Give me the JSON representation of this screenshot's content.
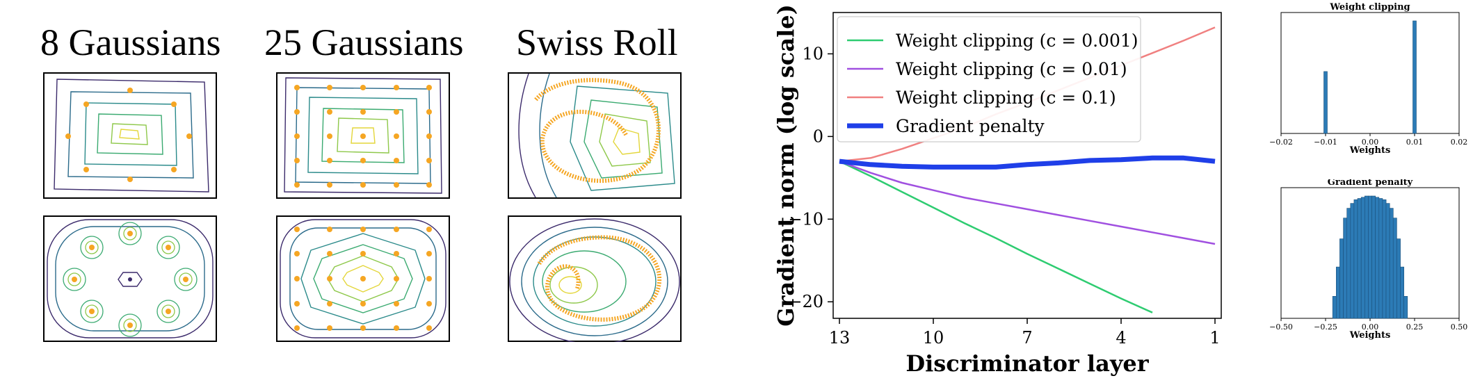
{
  "toy_titles": [
    "8 Gaussians",
    "25 Gaussians",
    "Swiss Roll"
  ],
  "chart_data": [
    {
      "type": "line",
      "xlabel": "Discriminator layer",
      "ylabel": "Gradient norm (log scale)",
      "x_ticks": [
        13,
        10,
        7,
        4,
        1
      ],
      "x_reversed": true,
      "xlim": [
        13.2,
        0.8
      ],
      "y_ticks": [
        10,
        0,
        -10,
        -20
      ],
      "ylim": [
        -22,
        15
      ],
      "legend_position": "top-left",
      "series": [
        {
          "name": "Weight clipping (c = 0.001)",
          "color": "#2ecc71",
          "x": [
            13,
            12,
            11,
            10,
            9,
            8,
            7,
            6,
            5,
            4,
            3
          ],
          "y": [
            -3,
            -4.8,
            -6.7,
            -8.6,
            -10.5,
            -12.3,
            -14.2,
            -16,
            -17.8,
            -19.6,
            -21.3
          ]
        },
        {
          "name": "Weight clipping (c = 0.01)",
          "color": "#a050e0",
          "x": [
            13,
            12,
            11,
            10,
            9,
            8,
            7,
            6,
            5,
            4,
            3,
            2,
            1
          ],
          "y": [
            -3,
            -4.4,
            -5.6,
            -6.5,
            -7.4,
            -8.1,
            -8.8,
            -9.5,
            -10.2,
            -10.9,
            -11.6,
            -12.3,
            -13
          ]
        },
        {
          "name": "Weight clipping (c = 0.1)",
          "color": "#f08080",
          "x": [
            13,
            12,
            11,
            10,
            9,
            8,
            7,
            6,
            5,
            4,
            3,
            2,
            1
          ],
          "y": [
            -3,
            -2.6,
            -1.5,
            -0.2,
            1.1,
            2.7,
            4.1,
            5.6,
            7.1,
            8.6,
            10.1,
            11.6,
            13.2
          ]
        },
        {
          "name": "Gradient penalty",
          "color": "#1f3fe8",
          "x": [
            13,
            12,
            11,
            10,
            9,
            8,
            7,
            6,
            5,
            4,
            3,
            2,
            1
          ],
          "y": [
            -3,
            -3.4,
            -3.6,
            -3.7,
            -3.7,
            -3.7,
            -3.4,
            -3.2,
            -2.9,
            -2.8,
            -2.6,
            -2.6,
            -3
          ]
        }
      ]
    },
    {
      "type": "bar",
      "title": "Weight clipping",
      "xlabel": "Weights",
      "x_ticks": [
        "−0.02",
        "−0.01",
        "0.00",
        "0.01",
        "0.02"
      ],
      "xlim": [
        -0.02,
        0.02
      ],
      "bins": [
        -0.01,
        0.01
      ],
      "values": [
        0.55,
        1.0
      ]
    },
    {
      "type": "bar",
      "title": "Gradient penalty",
      "xlabel": "Weights",
      "x_ticks": [
        "−0.50",
        "−0.25",
        "0.00",
        "0.25",
        "0.50"
      ],
      "xlim": [
        -0.5,
        0.5
      ],
      "bins": [
        -0.2,
        -0.18,
        -0.16,
        -0.14,
        -0.12,
        -0.1,
        -0.08,
        -0.06,
        -0.04,
        -0.02,
        0,
        0.02,
        0.04,
        0.06,
        0.08,
        0.1,
        0.12,
        0.14,
        0.16,
        0.18,
        0.2
      ],
      "values": [
        0.18,
        0.42,
        0.65,
        0.82,
        0.9,
        0.94,
        0.97,
        0.98,
        0.99,
        1.0,
        1.0,
        1.0,
        0.99,
        0.98,
        0.97,
        0.94,
        0.9,
        0.82,
        0.65,
        0.42,
        0.18
      ]
    }
  ],
  "colors": {
    "contour_dark": "#3b2a6b",
    "contour_mid": "#2a8a8a",
    "contour_light": "#e3d63a",
    "samples": "#f5a623"
  }
}
